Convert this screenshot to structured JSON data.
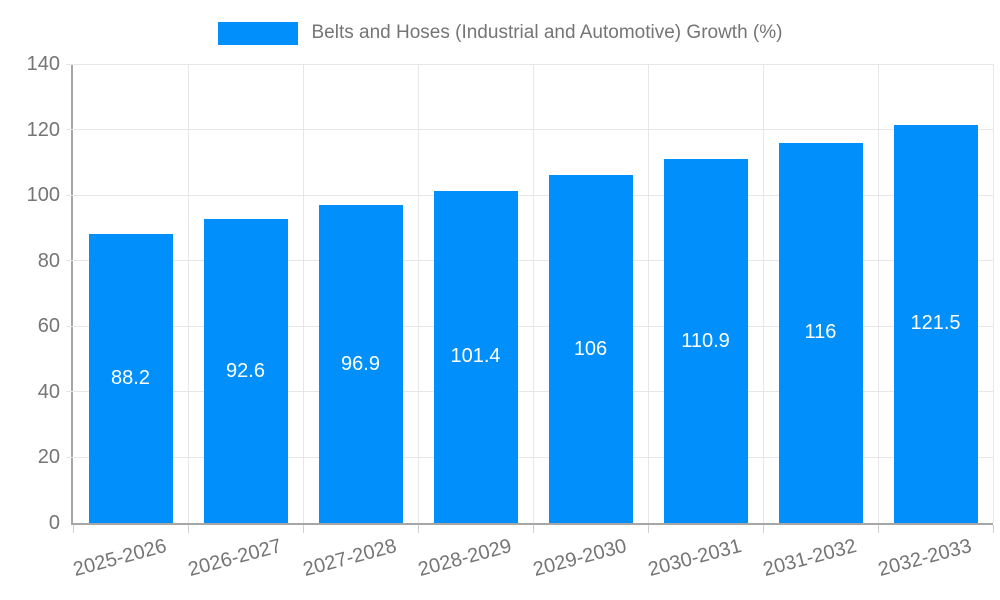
{
  "legend": {
    "label": "Belts and Hoses (Industrial and Automotive) Growth (%)"
  },
  "chart_data": {
    "type": "bar",
    "title": "Belts and Hoses (Industrial and Automotive) Growth (%)",
    "categories": [
      "2025-2026",
      "2026-2027",
      "2027-2028",
      "2028-2029",
      "2029-2030",
      "2030-2031",
      "2031-2032",
      "2032-2033"
    ],
    "values": [
      88.2,
      92.6,
      96.9,
      101.4,
      106,
      110.9,
      116,
      121.5
    ],
    "value_labels": [
      "88.2",
      "92.6",
      "96.9",
      "101.4",
      "106",
      "110.9",
      "116",
      "121.5"
    ],
    "xlabel": "",
    "ylabel": "",
    "ylim": [
      0,
      140
    ],
    "ytick_step": 20,
    "grid": true,
    "legend_position": "top",
    "colors": {
      "bar": "#008FFB",
      "value_label": "#ffffff",
      "axis_text": "#757575",
      "axis_line": "#a6a6a6",
      "gridline": "#e7e7e7",
      "tick": "#cfcfcf",
      "background": "#ffffff"
    }
  }
}
